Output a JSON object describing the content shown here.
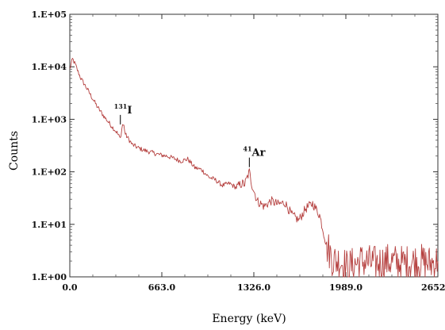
{
  "chart_data": {
    "type": "line",
    "xlabel": "Energy (keV)",
    "ylabel": "Counts",
    "xlim": [
      0,
      2652
    ],
    "ylim_log10": [
      0,
      5
    ],
    "y_scale": "log",
    "grid": false,
    "x_ticks": [
      {
        "value": 0,
        "label": "0.0"
      },
      {
        "value": 663,
        "label": "663.0"
      },
      {
        "value": 1326,
        "label": "1326.0"
      },
      {
        "value": 1989,
        "label": "1989.0"
      },
      {
        "value": 2652,
        "label": "2652.0"
      }
    ],
    "y_ticks": [
      {
        "value": 1,
        "label": "1.E+00"
      },
      {
        "value": 10,
        "label": "1.E+01"
      },
      {
        "value": 100,
        "label": "1.E+02"
      },
      {
        "value": 1000,
        "label": "1.E+03"
      },
      {
        "value": 10000,
        "label": "1.E+04"
      },
      {
        "value": 100000,
        "label": "1.E+05"
      }
    ],
    "series": [
      {
        "color": "#b5403f",
        "points": [
          [
            0,
            9000
          ],
          [
            20,
            14000
          ],
          [
            40,
            11000
          ],
          [
            60,
            8000
          ],
          [
            80,
            6000
          ],
          [
            120,
            4000
          ],
          [
            160,
            2600
          ],
          [
            200,
            1700
          ],
          [
            250,
            1100
          ],
          [
            300,
            750
          ],
          [
            340,
            560
          ],
          [
            364,
            430
          ],
          [
            380,
            800
          ],
          [
            390,
            750
          ],
          [
            400,
            520
          ],
          [
            450,
            330
          ],
          [
            500,
            280
          ],
          [
            550,
            250
          ],
          [
            600,
            230
          ],
          [
            650,
            210
          ],
          [
            700,
            200
          ],
          [
            750,
            180
          ],
          [
            800,
            160
          ],
          [
            850,
            175
          ],
          [
            880,
            140
          ],
          [
            900,
            120
          ],
          [
            950,
            110
          ],
          [
            1000,
            80
          ],
          [
            1050,
            70
          ],
          [
            1100,
            55
          ],
          [
            1150,
            60
          ],
          [
            1200,
            50
          ],
          [
            1240,
            60
          ],
          [
            1260,
            58
          ],
          [
            1294,
            100
          ],
          [
            1310,
            60
          ],
          [
            1350,
            28
          ],
          [
            1400,
            22
          ],
          [
            1450,
            28
          ],
          [
            1500,
            24
          ],
          [
            1550,
            26
          ],
          [
            1600,
            15
          ],
          [
            1650,
            12
          ],
          [
            1700,
            20
          ],
          [
            1750,
            25
          ],
          [
            1800,
            15
          ],
          [
            1850,
            4
          ],
          [
            1900,
            2
          ],
          [
            1950,
            2
          ],
          [
            2000,
            1.5
          ],
          [
            2100,
            2
          ],
          [
            2200,
            1.8
          ],
          [
            2300,
            2
          ],
          [
            2400,
            1.8
          ],
          [
            2500,
            2
          ],
          [
            2600,
            1.8
          ],
          [
            2652,
            2
          ]
        ]
      }
    ],
    "annotations": [
      {
        "superscript": "131",
        "label": "I",
        "x": 364,
        "y": 1300
      },
      {
        "superscript": "41",
        "label": "Ar",
        "x": 1294,
        "y": 200
      }
    ]
  }
}
